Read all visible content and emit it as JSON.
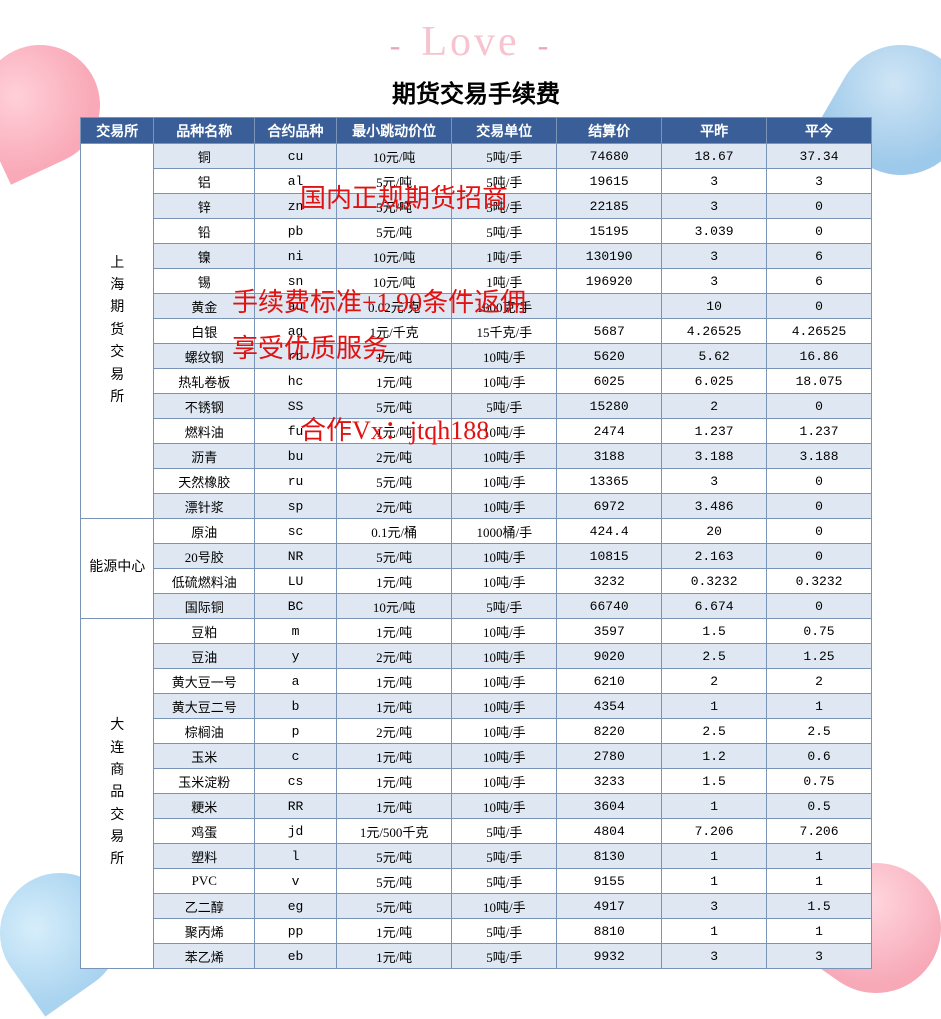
{
  "decor": {
    "love_text": "Love"
  },
  "title": "期货交易手续费",
  "columns": [
    "交易所",
    "品种名称",
    "合约品种",
    "最小跳动价位",
    "交易单位",
    "结算价",
    "平昨",
    "平今"
  ],
  "overlay": {
    "line1": "国内正规期货招商",
    "line2": "手续费标准+1  90条件返佣",
    "line3": "享受优质服务",
    "line4": "合作Vx：jtqh188"
  },
  "exchanges": [
    {
      "name": "上海期货交易所",
      "vertical": true,
      "rows": [
        {
          "name": "铜",
          "code": "cu",
          "tick": "10元/吨",
          "unit": "5吨/手",
          "settle": "74680",
          "prev": "18.67",
          "today": "37.34"
        },
        {
          "name": "铝",
          "code": "al",
          "tick": "5元/吨",
          "unit": "5吨/手",
          "settle": "19615",
          "prev": "3",
          "today": "3"
        },
        {
          "name": "锌",
          "code": "zn",
          "tick": "5元/吨",
          "unit": "5吨/手",
          "settle": "22185",
          "prev": "3",
          "today": "0"
        },
        {
          "name": "铅",
          "code": "pb",
          "tick": "5元/吨",
          "unit": "5吨/手",
          "settle": "15195",
          "prev": "3.039",
          "today": "0"
        },
        {
          "name": "镍",
          "code": "ni",
          "tick": "10元/吨",
          "unit": "1吨/手",
          "settle": "130190",
          "prev": "3",
          "today": "6"
        },
        {
          "name": "锡",
          "code": "sn",
          "tick": "10元/吨",
          "unit": "1吨/手",
          "settle": "196920",
          "prev": "3",
          "today": "6"
        },
        {
          "name": "黄金",
          "code": "au",
          "tick": "0.02元/克",
          "unit": "1000克/手",
          "settle": "",
          "prev": "10",
          "today": "0"
        },
        {
          "name": "白银",
          "code": "ag",
          "tick": "1元/千克",
          "unit": "15千克/手",
          "settle": "5687",
          "prev": "4.26525",
          "today": "4.26525"
        },
        {
          "name": "螺纹钢",
          "code": "rb",
          "tick": "1元/吨",
          "unit": "10吨/手",
          "settle": "5620",
          "prev": "5.62",
          "today": "16.86"
        },
        {
          "name": "热轧卷板",
          "code": "hc",
          "tick": "1元/吨",
          "unit": "10吨/手",
          "settle": "6025",
          "prev": "6.025",
          "today": "18.075"
        },
        {
          "name": "不锈钢",
          "code": "SS",
          "tick": "5元/吨",
          "unit": "5吨/手",
          "settle": "15280",
          "prev": "2",
          "today": "0"
        },
        {
          "name": "燃料油",
          "code": "fu",
          "tick": "1元/吨",
          "unit": "10吨/手",
          "settle": "2474",
          "prev": "1.237",
          "today": "1.237"
        },
        {
          "name": "沥青",
          "code": "bu",
          "tick": "2元/吨",
          "unit": "10吨/手",
          "settle": "3188",
          "prev": "3.188",
          "today": "3.188"
        },
        {
          "name": "天然橡胶",
          "code": "ru",
          "tick": "5元/吨",
          "unit": "10吨/手",
          "settle": "13365",
          "prev": "3",
          "today": "0"
        },
        {
          "name": "漂针浆",
          "code": "sp",
          "tick": "2元/吨",
          "unit": "10吨/手",
          "settle": "6972",
          "prev": "3.486",
          "today": "0"
        }
      ]
    },
    {
      "name": "能源中心",
      "vertical": false,
      "rows": [
        {
          "name": "原油",
          "code": "sc",
          "tick": "0.1元/桶",
          "unit": "1000桶/手",
          "settle": "424.4",
          "prev": "20",
          "today": "0"
        },
        {
          "name": "20号胶",
          "code": "NR",
          "tick": "5元/吨",
          "unit": "10吨/手",
          "settle": "10815",
          "prev": "2.163",
          "today": "0"
        },
        {
          "name": "低硫燃料油",
          "code": "LU",
          "tick": "1元/吨",
          "unit": "10吨/手",
          "settle": "3232",
          "prev": "0.3232",
          "today": "0.3232"
        },
        {
          "name": "国际铜",
          "code": "BC",
          "tick": "10元/吨",
          "unit": "5吨/手",
          "settle": "66740",
          "prev": "6.674",
          "today": "0"
        }
      ]
    },
    {
      "name": "大连商品交易所",
      "vertical": true,
      "rows": [
        {
          "name": "豆粕",
          "code": "m",
          "tick": "1元/吨",
          "unit": "10吨/手",
          "settle": "3597",
          "prev": "1.5",
          "today": "0.75"
        },
        {
          "name": "豆油",
          "code": "y",
          "tick": "2元/吨",
          "unit": "10吨/手",
          "settle": "9020",
          "prev": "2.5",
          "today": "1.25"
        },
        {
          "name": "黄大豆一号",
          "code": "a",
          "tick": "1元/吨",
          "unit": "10吨/手",
          "settle": "6210",
          "prev": "2",
          "today": "2"
        },
        {
          "name": "黄大豆二号",
          "code": "b",
          "tick": "1元/吨",
          "unit": "10吨/手",
          "settle": "4354",
          "prev": "1",
          "today": "1"
        },
        {
          "name": "棕榈油",
          "code": "p",
          "tick": "2元/吨",
          "unit": "10吨/手",
          "settle": "8220",
          "prev": "2.5",
          "today": "2.5"
        },
        {
          "name": "玉米",
          "code": "c",
          "tick": "1元/吨",
          "unit": "10吨/手",
          "settle": "2780",
          "prev": "1.2",
          "today": "0.6"
        },
        {
          "name": "玉米淀粉",
          "code": "cs",
          "tick": "1元/吨",
          "unit": "10吨/手",
          "settle": "3233",
          "prev": "1.5",
          "today": "0.75"
        },
        {
          "name": "粳米",
          "code": "RR",
          "tick": "1元/吨",
          "unit": "10吨/手",
          "settle": "3604",
          "prev": "1",
          "today": "0.5"
        },
        {
          "name": "鸡蛋",
          "code": "jd",
          "tick": "1元/500千克",
          "unit": "5吨/手",
          "settle": "4804",
          "prev": "7.206",
          "today": "7.206"
        },
        {
          "name": "塑料",
          "code": "l",
          "tick": "5元/吨",
          "unit": "5吨/手",
          "settle": "8130",
          "prev": "1",
          "today": "1"
        },
        {
          "name": "PVC",
          "code": "v",
          "tick": "5元/吨",
          "unit": "5吨/手",
          "settle": "9155",
          "prev": "1",
          "today": "1"
        },
        {
          "name": "乙二醇",
          "code": "eg",
          "tick": "5元/吨",
          "unit": "10吨/手",
          "settle": "4917",
          "prev": "3",
          "today": "1.5"
        },
        {
          "name": "聚丙烯",
          "code": "pp",
          "tick": "1元/吨",
          "unit": "5吨/手",
          "settle": "8810",
          "prev": "1",
          "today": "1"
        },
        {
          "name": "苯乙烯",
          "code": "eb",
          "tick": "1元/吨",
          "unit": "5吨/手",
          "settle": "9932",
          "prev": "3",
          "today": "3"
        }
      ]
    }
  ],
  "col_widths": [
    "70px",
    "96px",
    "78px",
    "110px",
    "100px",
    "100px",
    "100px",
    "100px"
  ]
}
